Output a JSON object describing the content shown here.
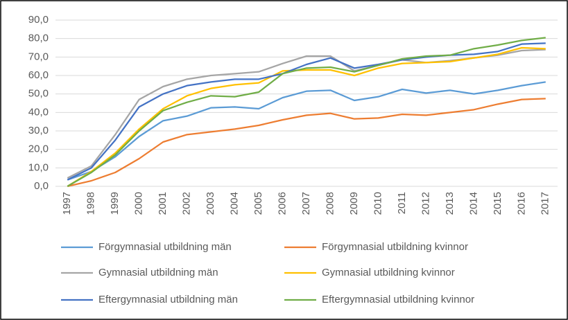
{
  "chart_data": {
    "type": "line",
    "categories": [
      "1997",
      "1998",
      "1999",
      "2000",
      "2001",
      "2002",
      "2003",
      "2004",
      "2005",
      "2006",
      "2007",
      "2008",
      "2009",
      "2010",
      "2011",
      "2012",
      "2013",
      "2014",
      "2015",
      "2016",
      "2017"
    ],
    "series": [
      {
        "name": "Förgymnasial utbildning män",
        "color": "#5b9bd5",
        "values": [
          3.5,
          8,
          16,
          27,
          35.5,
          38,
          42.5,
          43,
          42,
          48,
          51.5,
          52,
          46.5,
          48.5,
          52.5,
          50.5,
          52,
          50,
          52,
          54.5,
          56.5
        ]
      },
      {
        "name": "Förgymnasial utbildning kvinnor",
        "color": "#ed7d31",
        "values": [
          0,
          3,
          7.5,
          15,
          24,
          28,
          29.5,
          31,
          33,
          36,
          38.5,
          39.5,
          36.5,
          37,
          39,
          38.5,
          40,
          41.5,
          44.5,
          47,
          47.5
        ]
      },
      {
        "name": "Gymnasial utbildning män",
        "color": "#a5a5a5",
        "values": [
          4.5,
          11,
          28,
          47,
          54,
          58,
          60,
          61,
          62,
          66.5,
          70.5,
          70.5,
          62.5,
          65.5,
          68.5,
          67,
          68,
          69.5,
          71,
          73.5,
          74
        ]
      },
      {
        "name": "Gymnasial utbildning kvinnor",
        "color": "#ffc000",
        "values": [
          0,
          8,
          18,
          31,
          42,
          49,
          53,
          55,
          56,
          62.5,
          63,
          63,
          60,
          64,
          66.5,
          67,
          67.5,
          69.5,
          71.5,
          75,
          74.5
        ]
      },
      {
        "name": "Eftergymnasial utbildning män",
        "color": "#4472c4",
        "values": [
          3.5,
          10,
          25,
          43,
          50,
          54.5,
          56.5,
          58,
          58,
          61,
          66,
          69.5,
          64,
          66,
          68.5,
          70,
          71,
          71.5,
          73,
          77,
          77.5
        ]
      },
      {
        "name": "Eftergymnasial utbildning kvinnor",
        "color": "#70ad47",
        "values": [
          0,
          7.5,
          17,
          30,
          41,
          45.5,
          49,
          48.5,
          51,
          61,
          64,
          64.5,
          62,
          65.5,
          69,
          70.5,
          71,
          74.5,
          76.5,
          79,
          80.5
        ]
      }
    ],
    "ylim": [
      0,
      90
    ],
    "yticks": [
      {
        "value": 0,
        "label": "0,0"
      },
      {
        "value": 10,
        "label": "10,0"
      },
      {
        "value": 20,
        "label": "20,0"
      },
      {
        "value": 30,
        "label": "30,0"
      },
      {
        "value": 40,
        "label": "40,0"
      },
      {
        "value": 50,
        "label": "50,0"
      },
      {
        "value": 60,
        "label": "60,0"
      },
      {
        "value": 70,
        "label": "70,0"
      },
      {
        "value": 80,
        "label": "80,0"
      },
      {
        "value": 90,
        "label": "90,0"
      }
    ],
    "grid": true
  }
}
